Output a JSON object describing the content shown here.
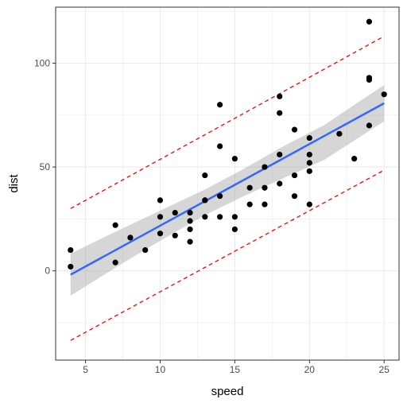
{
  "chart_data": {
    "type": "scatter",
    "title": "",
    "xlabel": "speed",
    "ylabel": "dist",
    "xlim": [
      3.0,
      26.0
    ],
    "ylim": [
      -43,
      127
    ],
    "xticks": [
      5,
      10,
      15,
      20,
      25
    ],
    "yticks": [
      0,
      50,
      100
    ],
    "grid": true,
    "colors": {
      "points": "#000000",
      "fit_line": "#3366ff",
      "confidence_band": "#999999",
      "prediction_interval": "#ff0000",
      "grid": "#ebebeb",
      "panel_border": "#333333"
    },
    "points": [
      {
        "x": 4,
        "y": 2
      },
      {
        "x": 4,
        "y": 10
      },
      {
        "x": 7,
        "y": 4
      },
      {
        "x": 7,
        "y": 22
      },
      {
        "x": 8,
        "y": 16
      },
      {
        "x": 9,
        "y": 10
      },
      {
        "x": 10,
        "y": 18
      },
      {
        "x": 10,
        "y": 26
      },
      {
        "x": 10,
        "y": 34
      },
      {
        "x": 11,
        "y": 17
      },
      {
        "x": 11,
        "y": 28
      },
      {
        "x": 12,
        "y": 14
      },
      {
        "x": 12,
        "y": 20
      },
      {
        "x": 12,
        "y": 24
      },
      {
        "x": 12,
        "y": 28
      },
      {
        "x": 13,
        "y": 26
      },
      {
        "x": 13,
        "y": 34
      },
      {
        "x": 13,
        "y": 34
      },
      {
        "x": 13,
        "y": 46
      },
      {
        "x": 14,
        "y": 26
      },
      {
        "x": 14,
        "y": 36
      },
      {
        "x": 14,
        "y": 60
      },
      {
        "x": 14,
        "y": 80
      },
      {
        "x": 15,
        "y": 20
      },
      {
        "x": 15,
        "y": 26
      },
      {
        "x": 15,
        "y": 54
      },
      {
        "x": 16,
        "y": 32
      },
      {
        "x": 16,
        "y": 40
      },
      {
        "x": 17,
        "y": 32
      },
      {
        "x": 17,
        "y": 40
      },
      {
        "x": 17,
        "y": 50
      },
      {
        "x": 18,
        "y": 42
      },
      {
        "x": 18,
        "y": 56
      },
      {
        "x": 18,
        "y": 76
      },
      {
        "x": 18,
        "y": 84
      },
      {
        "x": 19,
        "y": 36
      },
      {
        "x": 19,
        "y": 46
      },
      {
        "x": 19,
        "y": 68
      },
      {
        "x": 20,
        "y": 32
      },
      {
        "x": 20,
        "y": 48
      },
      {
        "x": 20,
        "y": 52
      },
      {
        "x": 20,
        "y": 56
      },
      {
        "x": 20,
        "y": 64
      },
      {
        "x": 22,
        "y": 66
      },
      {
        "x": 23,
        "y": 54
      },
      {
        "x": 24,
        "y": 70
      },
      {
        "x": 24,
        "y": 92
      },
      {
        "x": 24,
        "y": 93
      },
      {
        "x": 24,
        "y": 120
      },
      {
        "x": 25,
        "y": 85
      }
    ],
    "fit_line": {
      "x": [
        4,
        25
      ],
      "y": [
        -1.85,
        80.73
      ]
    },
    "confidence_band": {
      "x": [
        4,
        7,
        10,
        13,
        15.4,
        18,
        21,
        25
      ],
      "lower": [
        -12.0,
        1.5,
        14.5,
        26.8,
        35.3,
        43.8,
        53.5,
        72.0
      ],
      "upper": [
        8.3,
        18.8,
        29.0,
        39.2,
        48.3,
        59.0,
        70.3,
        89.5
      ]
    },
    "prediction_interval": {
      "x": [
        4,
        25
      ],
      "lower": [
        -33.5,
        48.5
      ],
      "upper": [
        30.0,
        113.0
      ]
    }
  }
}
